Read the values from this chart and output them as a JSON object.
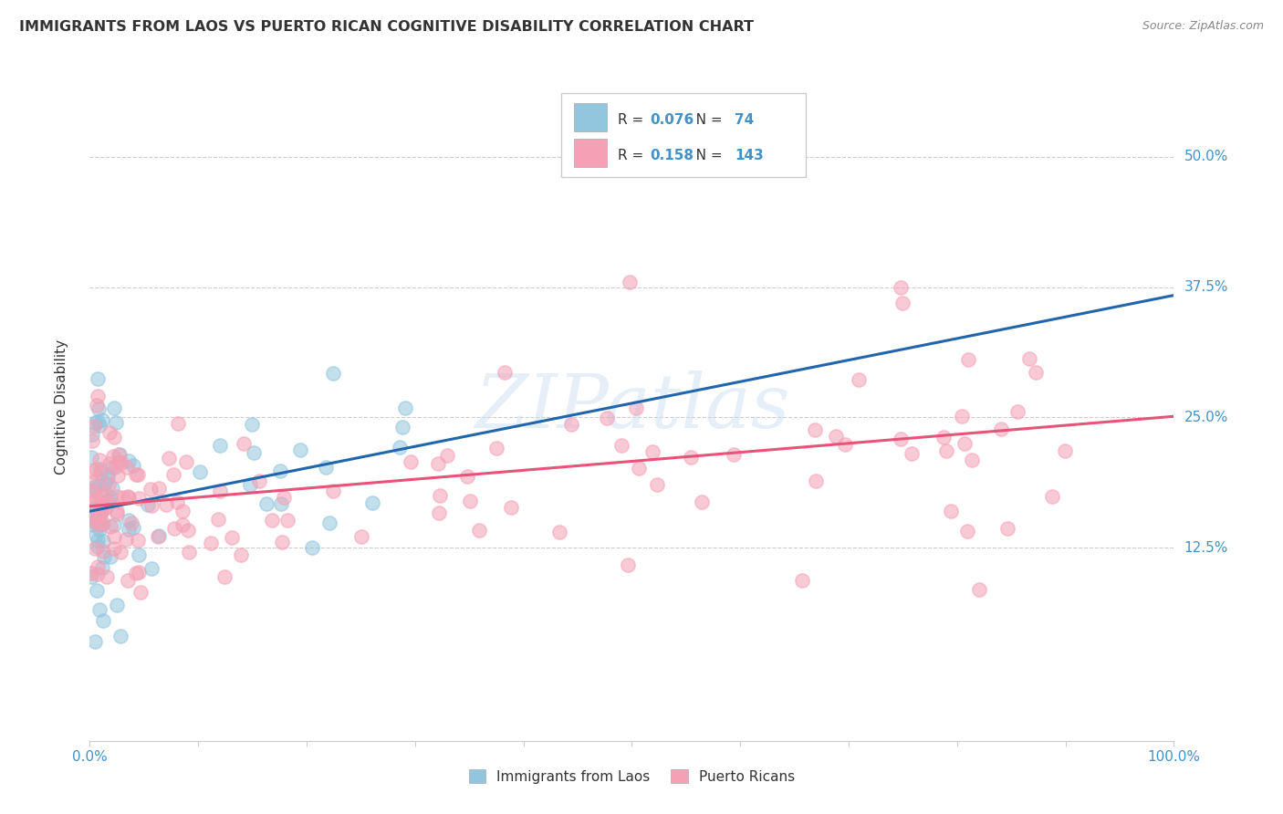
{
  "title": "IMMIGRANTS FROM LAOS VS PUERTO RICAN COGNITIVE DISABILITY CORRELATION CHART",
  "source": "Source: ZipAtlas.com",
  "ylabel": "Cognitive Disability",
  "ytick_labels": [
    "12.5%",
    "25.0%",
    "37.5%",
    "50.0%"
  ],
  "ytick_values": [
    0.125,
    0.25,
    0.375,
    0.5
  ],
  "xlim": [
    0.0,
    1.0
  ],
  "ylim": [
    -0.06,
    0.58
  ],
  "legend_label1": "Immigrants from Laos",
  "legend_label2": "Puerto Ricans",
  "R1": "0.076",
  "N1": "74",
  "R2": "0.158",
  "N2": "143",
  "color_blue": "#92c5de",
  "color_pink": "#f4a0b5",
  "color_line_blue": "#2166ac",
  "color_line_pink": "#e8537a",
  "color_blue_text": "#4292c6",
  "watermark_text": "ZIPatlas",
  "grid_color": "#cccccc",
  "title_color": "#333333",
  "source_color": "#888888"
}
